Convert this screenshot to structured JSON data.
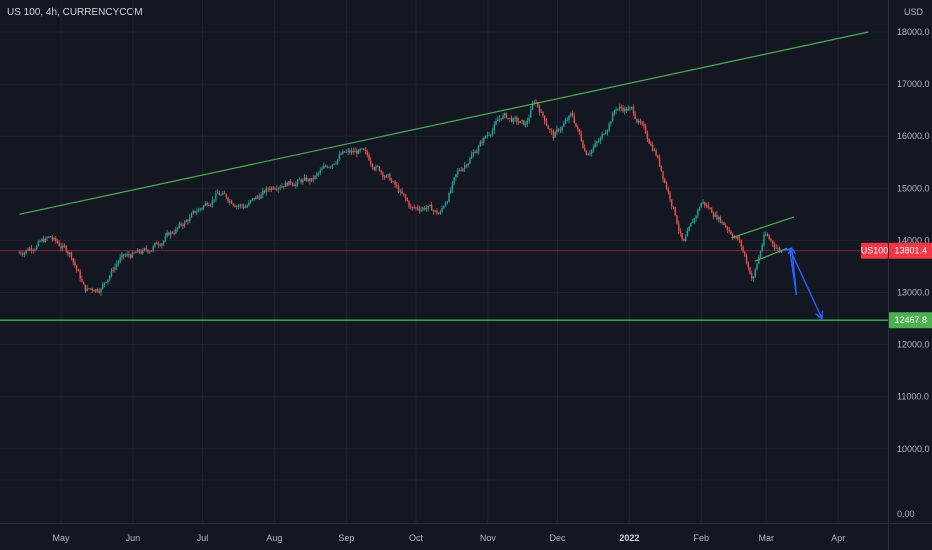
{
  "chart_data": {
    "type": "candlestick",
    "title": "US 100, 4h, CURRENCYCOM",
    "currency": "USD",
    "ylim": [
      9000,
      18400
    ],
    "x_ticks": [
      "May",
      "Jun",
      "Jul",
      "Aug",
      "Sep",
      "Oct",
      "Nov",
      "Dec",
      "2022",
      "Feb",
      "Mar",
      "Apr"
    ],
    "x_tick_bold": "2022",
    "y_ticks": [
      "18000.0",
      "17000.0",
      "16000.0",
      "15000.0",
      "14000.0",
      "13000.0",
      "12000.0",
      "11000.0",
      "10000.0"
    ],
    "y_tick_bottom": "0.00",
    "price_path": [
      {
        "x": "2021-04-13",
        "y": 13750
      },
      {
        "x": "2021-04-27",
        "y": 14050
      },
      {
        "x": "2021-05-06",
        "y": 13750
      },
      {
        "x": "2021-05-12",
        "y": 13050
      },
      {
        "x": "2021-05-19",
        "y": 13100
      },
      {
        "x": "2021-05-27",
        "y": 13650
      },
      {
        "x": "2021-06-08",
        "y": 13800
      },
      {
        "x": "2021-06-23",
        "y": 14300
      },
      {
        "x": "2021-07-08",
        "y": 14900
      },
      {
        "x": "2021-07-20",
        "y": 14650
      },
      {
        "x": "2021-08-03",
        "y": 15100
      },
      {
        "x": "2021-08-18",
        "y": 15150
      },
      {
        "x": "2021-08-30",
        "y": 15650
      },
      {
        "x": "2021-09-08",
        "y": 15700
      },
      {
        "x": "2021-09-20",
        "y": 15200
      },
      {
        "x": "2021-09-30",
        "y": 14600
      },
      {
        "x": "2021-10-06",
        "y": 14650
      },
      {
        "x": "2021-10-12",
        "y": 14500
      },
      {
        "x": "2021-10-20",
        "y": 15300
      },
      {
        "x": "2021-11-01",
        "y": 16000
      },
      {
        "x": "2021-11-08",
        "y": 16400
      },
      {
        "x": "2021-11-18",
        "y": 16200
      },
      {
        "x": "2021-11-22",
        "y": 16700
      },
      {
        "x": "2021-11-30",
        "y": 16000
      },
      {
        "x": "2021-12-08",
        "y": 16400
      },
      {
        "x": "2021-12-14",
        "y": 15700
      },
      {
        "x": "2021-12-20",
        "y": 15900
      },
      {
        "x": "2021-12-27",
        "y": 16550
      },
      {
        "x": "2022-01-03",
        "y": 16500
      },
      {
        "x": "2022-01-13",
        "y": 15700
      },
      {
        "x": "2022-01-21",
        "y": 14600
      },
      {
        "x": "2022-01-25",
        "y": 13900
      },
      {
        "x": "2022-02-02",
        "y": 14750
      },
      {
        "x": "2022-02-10",
        "y": 14400
      },
      {
        "x": "2022-02-18",
        "y": 14000
      },
      {
        "x": "2022-02-24",
        "y": 13250
      },
      {
        "x": "2022-03-01",
        "y": 14100
      },
      {
        "x": "2022-03-08",
        "y": 13801.4
      }
    ],
    "current_price": {
      "symbol": "US100",
      "value": 13801.4,
      "label": "13801.4",
      "color": "#f23645"
    },
    "support_level": {
      "value": 12467.8,
      "label": "12467.8",
      "color": "#4caf50"
    },
    "trendlines": [
      {
        "role": "rising resistance",
        "color": "#4caf50",
        "points": [
          {
            "x": "2021-04-13",
            "y": 14500
          },
          {
            "x": "2022-04-14",
            "y": 18000
          }
        ]
      },
      {
        "role": "flag upper",
        "color": "#4caf50",
        "points": [
          {
            "x": "2022-02-14",
            "y": 14050
          },
          {
            "x": "2022-03-13",
            "y": 14450
          }
        ]
      },
      {
        "role": "flag lower",
        "color": "#4caf50",
        "points": [
          {
            "x": "2022-02-24",
            "y": 13600
          },
          {
            "x": "2022-03-10",
            "y": 13850
          }
        ]
      }
    ],
    "projection": {
      "color": "#2962ff",
      "points": [
        {
          "x": "2022-03-08",
          "y": 13800
        },
        {
          "x": "2022-03-12",
          "y": 13850
        },
        {
          "x": "2022-03-14",
          "y": 12950
        },
        {
          "x": "2022-03-11",
          "y": 13850
        },
        {
          "x": "2022-03-25",
          "y": 12500
        }
      ]
    },
    "colors": {
      "up": "#26a69a",
      "down": "#ef5350",
      "background": "#131722",
      "grid": "#1e222d",
      "axis_text": "#b2b5be"
    },
    "grid": true
  }
}
